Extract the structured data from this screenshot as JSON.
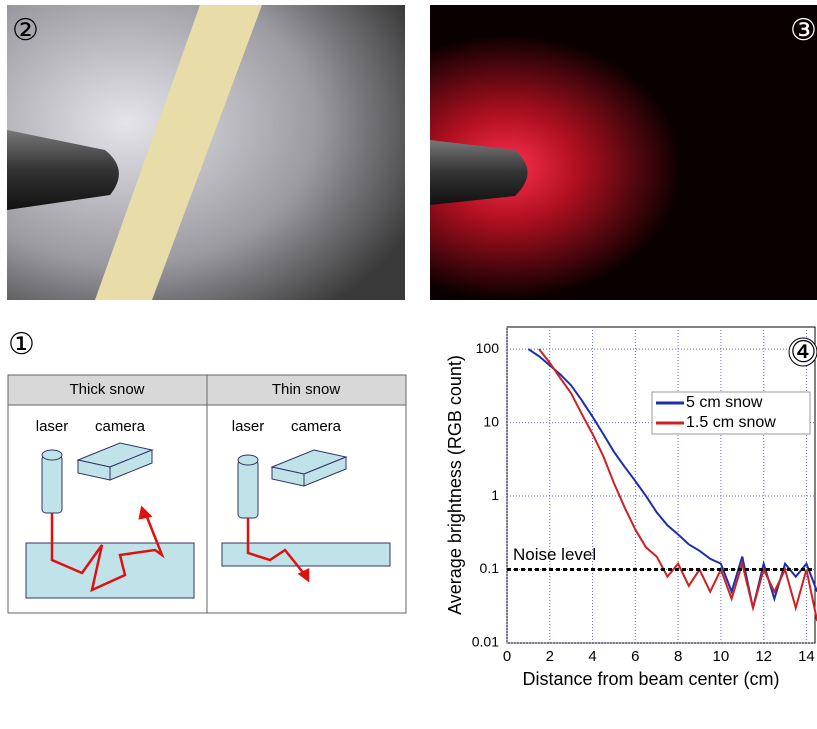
{
  "panel_labels": [
    "①",
    "②",
    "③",
    "④"
  ],
  "diagram": {
    "columns": [
      {
        "title": "Thick snow",
        "laser": "laser",
        "camera": "camera"
      },
      {
        "title": "Thin snow",
        "laser": "laser",
        "camera": "camera"
      }
    ]
  },
  "chart_data": {
    "type": "line",
    "xlabel": "Distance from beam center (cm)",
    "ylabel": "Average brightness (RGB count)",
    "xlim": [
      0,
      14.4
    ],
    "ylim": [
      0.01,
      200
    ],
    "log_y": true,
    "grid": true,
    "xticks": [
      0,
      2,
      4,
      6,
      8,
      10,
      12,
      14
    ],
    "yticks": [
      0.01,
      0.1,
      1,
      10,
      100
    ],
    "noise_level": 0.1,
    "noise_label": "Noise level",
    "series": [
      {
        "name": "5 cm snow",
        "color": "#1a2fb0",
        "x": [
          1,
          1.5,
          2,
          2.5,
          3,
          3.5,
          4,
          4.5,
          5,
          5.5,
          6,
          6.5,
          7,
          7.5,
          8,
          8.5,
          9,
          9.5,
          10,
          10.5,
          11,
          11.5,
          12,
          12.5,
          13,
          13.5,
          14,
          14.5
        ],
        "values": [
          100,
          80,
          60,
          45,
          32,
          20,
          12,
          7,
          4,
          2.5,
          1.6,
          1,
          0.6,
          0.4,
          0.3,
          0.22,
          0.18,
          0.14,
          0.12,
          0.05,
          0.15,
          0.03,
          0.12,
          0.04,
          0.12,
          0.08,
          0.12,
          0.05
        ]
      },
      {
        "name": "1.5 cm snow",
        "color": "#d02020",
        "x": [
          1.5,
          2,
          2.5,
          3,
          3.5,
          4,
          4.5,
          5,
          5.5,
          6,
          6.5,
          7,
          7.5,
          8,
          8.5,
          9,
          9.5,
          10,
          10.5,
          11,
          11.5,
          12,
          12.5,
          13,
          13.5,
          14,
          14.5
        ],
        "values": [
          100,
          65,
          40,
          25,
          13,
          7,
          3.5,
          1.5,
          0.7,
          0.35,
          0.2,
          0.15,
          0.08,
          0.12,
          0.06,
          0.1,
          0.05,
          0.1,
          0.04,
          0.12,
          0.03,
          0.1,
          0.05,
          0.1,
          0.03,
          0.1,
          0.02
        ]
      }
    ]
  }
}
